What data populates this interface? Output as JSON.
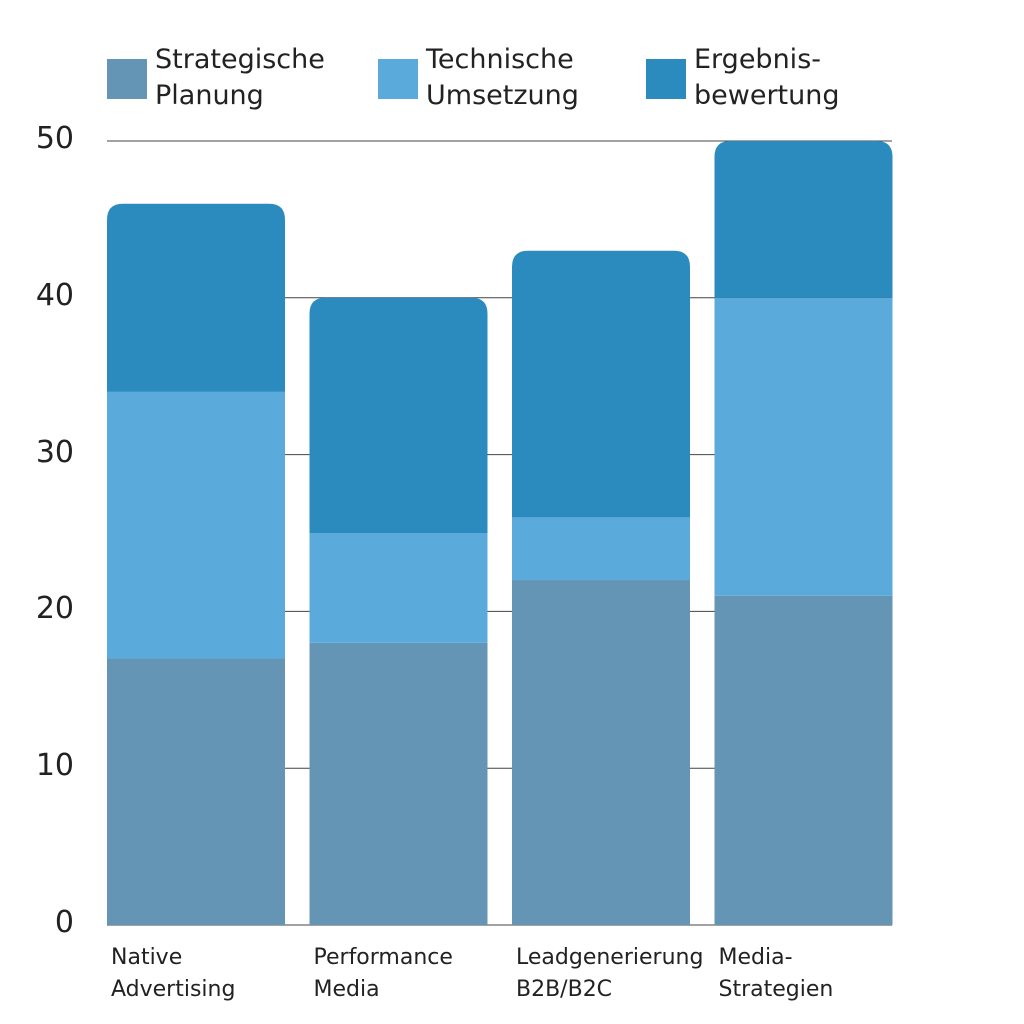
{
  "chart_data": {
    "type": "stacked_bar",
    "categories": [
      "Native Advertising",
      "Performance Media",
      "Leadgenerierung B2B/B2C",
      "Media-Strategien"
    ],
    "series": [
      {
        "name": "Strategische Planung",
        "color": "#6495b4",
        "values": [
          17,
          18,
          22,
          21
        ]
      },
      {
        "name": "Technische Umsetzung",
        "color": "#5aabdc",
        "values": [
          17,
          7,
          4,
          19
        ]
      },
      {
        "name": "Ergebnis-bewertung",
        "color": "#2b8bbf",
        "values": [
          12,
          15,
          17,
          10
        ]
      }
    ],
    "ylim": [
      0,
      50
    ],
    "yticks": [
      0,
      10,
      20,
      30,
      40,
      50
    ],
    "grid": true
  }
}
